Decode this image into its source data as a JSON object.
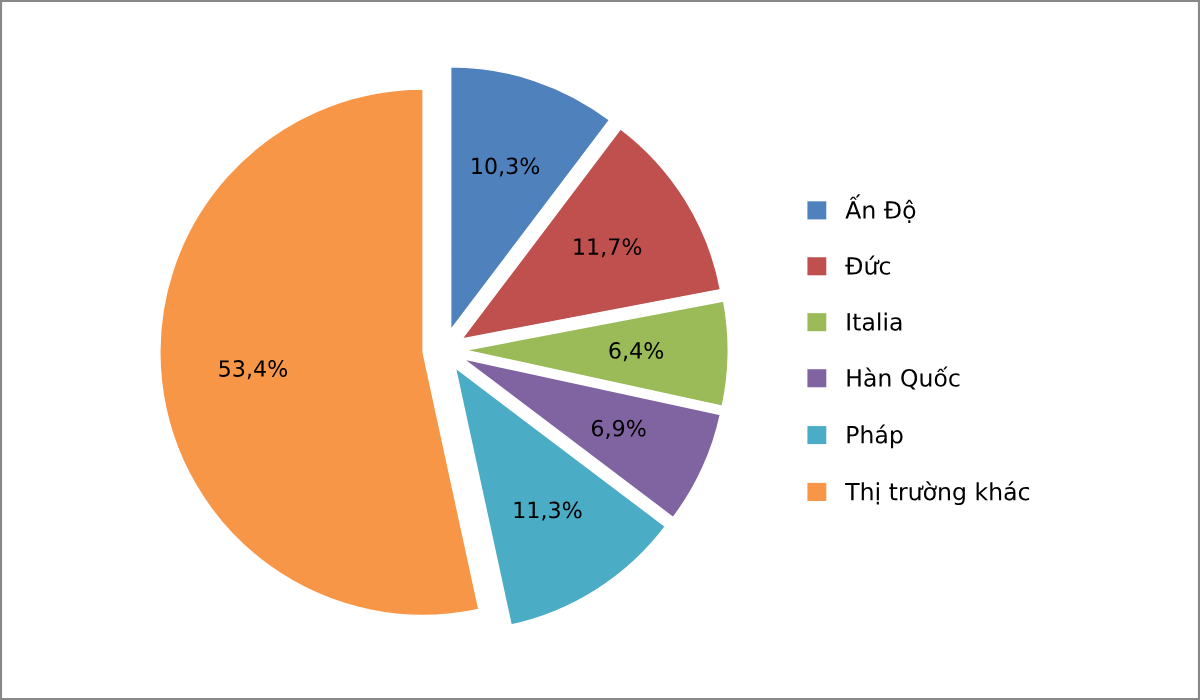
{
  "chart_data": {
    "type": "pie",
    "categories": [
      "Ấn Độ",
      "Đức",
      "Italia",
      "Hàn Quốc",
      "Pháp",
      "Thị trường khác"
    ],
    "values": [
      10.3,
      11.7,
      6.4,
      6.9,
      11.3,
      53.4
    ],
    "value_labels": [
      "10,3%",
      "11,7%",
      "6,4%",
      "6,9%",
      "11,3%",
      "53,4%"
    ],
    "colors": [
      "#4f81bd",
      "#c0504d",
      "#9bbb59",
      "#8064a2",
      "#4bacc6",
      "#f79646"
    ],
    "legend": "right"
  }
}
